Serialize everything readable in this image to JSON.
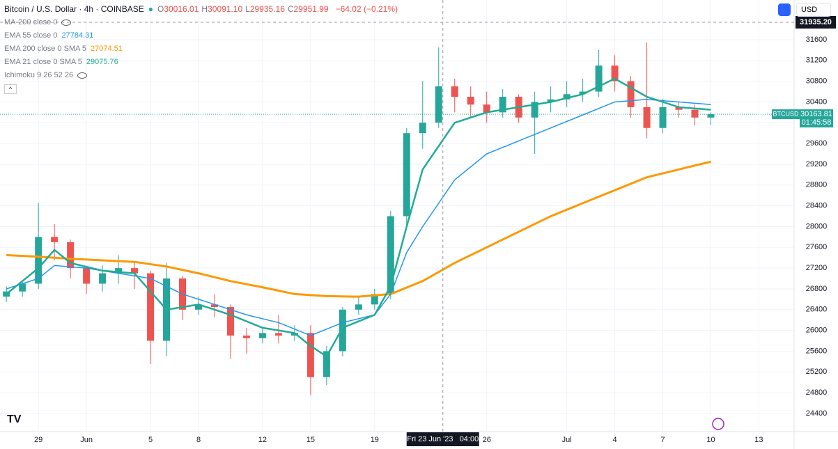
{
  "header": {
    "title": "Bitcoin / U.S. Dollar · 4h · COINBASE",
    "ohlc": [
      {
        "key": "O",
        "value": "30016.01"
      },
      {
        "key": "H",
        "value": "30091.10"
      },
      {
        "key": "L",
        "value": "29935.16"
      },
      {
        "key": "C",
        "value": "29951.99"
      }
    ],
    "change": "−64.02 (−0.21%)"
  },
  "indicators": [
    {
      "label": "MA-200 close 0"
    },
    {
      "label": "EMA 55 close 0",
      "value": "27784.31",
      "color": "#2196f3"
    },
    {
      "label": "EMA 200 close 0 SMA 5",
      "value": "27074.51",
      "color": "#ff9800"
    },
    {
      "label": "EMA 21 close 0 SMA 5",
      "value": "29075.76",
      "color": "#22ab94"
    },
    {
      "label": "Ichimoku 9 26 52 26"
    }
  ],
  "currency": "USD",
  "symbol": "BTCUSD",
  "countdown": "01:45:58",
  "chart_data": {
    "type": "candlestick",
    "up_color": "#26a69a",
    "down_color": "#ef5350",
    "x": [
      -2,
      -1,
      0,
      1,
      2,
      3,
      4,
      5,
      6,
      7,
      8,
      9,
      10,
      11,
      12,
      13,
      14,
      15,
      16,
      17,
      18,
      19,
      20,
      21,
      22,
      23,
      24,
      25,
      26,
      27,
      28,
      29,
      30,
      31,
      32,
      33,
      34,
      35,
      36,
      37,
      38,
      39,
      40,
      41,
      42
    ],
    "open": [
      26650,
      26750,
      26900,
      27800,
      27700,
      27200,
      26900,
      27100,
      27200,
      27100,
      25800,
      27000,
      26400,
      26500,
      26450,
      25900,
      25850,
      25950,
      25900,
      25950,
      25100,
      25600,
      26400,
      26500,
      26700,
      28200,
      29800,
      30000,
      30700,
      30500,
      30350,
      30200,
      30500,
      30100,
      30400,
      30450,
      30550,
      30600,
      31100,
      30800,
      30300,
      29900,
      30300,
      30250,
      30100
    ],
    "high": [
      26850,
      26950,
      28450,
      28050,
      27750,
      27200,
      27250,
      27450,
      27300,
      27150,
      27300,
      27050,
      26650,
      26700,
      26500,
      26050,
      26050,
      26300,
      26100,
      26100,
      25700,
      26450,
      26650,
      26800,
      28300,
      29900,
      30800,
      31450,
      30850,
      30700,
      30600,
      30650,
      30550,
      30600,
      30700,
      30800,
      30850,
      31400,
      31300,
      30900,
      31550,
      30450,
      30400,
      30350,
      30200
    ],
    "low": [
      26550,
      26650,
      26800,
      27350,
      27000,
      26700,
      26750,
      26900,
      26800,
      25350,
      25500,
      26200,
      26300,
      26250,
      25450,
      25550,
      25750,
      25750,
      25800,
      24750,
      24950,
      25500,
      26300,
      26400,
      26600,
      28000,
      29500,
      29900,
      30200,
      30100,
      30000,
      30100,
      30000,
      29400,
      30200,
      30300,
      30400,
      30500,
      30600,
      30100,
      29700,
      29800,
      30100,
      29950,
      29950
    ],
    "close": [
      26750,
      26900,
      27800,
      27700,
      27200,
      26900,
      27100,
      27200,
      27100,
      25800,
      27000,
      26400,
      26500,
      26450,
      25900,
      25850,
      25950,
      25900,
      25950,
      25100,
      25600,
      26400,
      26500,
      26700,
      28200,
      29800,
      30000,
      30700,
      30500,
      30350,
      30200,
      30500,
      30100,
      30400,
      30450,
      30550,
      30600,
      31100,
      30800,
      30300,
      29900,
      30300,
      30250,
      30100,
      30164
    ],
    "series": [
      {
        "color": "#ff9800",
        "width": 3,
        "x": [
          -2,
          0,
          2,
          4,
          6,
          8,
          10,
          12,
          14,
          16,
          18,
          20,
          22,
          24,
          26,
          28,
          30,
          32,
          34,
          36,
          38,
          40,
          42
        ],
        "values": [
          27450,
          27420,
          27380,
          27350,
          27320,
          27230,
          27100,
          26950,
          26830,
          26700,
          26660,
          26650,
          26700,
          26950,
          27300,
          27600,
          27900,
          28200,
          28450,
          28700,
          28950,
          29100,
          29250
        ]
      },
      {
        "color": "#2196f3",
        "width": 1.5,
        "x": [
          -2,
          0,
          1,
          3,
          5,
          7,
          9,
          11,
          13,
          15,
          17,
          19,
          21,
          22,
          23,
          24,
          26,
          28,
          30,
          32,
          34,
          36,
          38,
          40,
          42
        ],
        "values": [
          26800,
          27000,
          27250,
          27200,
          27100,
          27000,
          26700,
          26500,
          26300,
          26150,
          25900,
          26150,
          26300,
          26700,
          27500,
          28000,
          28900,
          29400,
          29650,
          29900,
          30150,
          30400,
          30450,
          30400,
          30350
        ]
      },
      {
        "color": "#22ab94",
        "width": 2.5,
        "x": [
          -2,
          0,
          1,
          2,
          4,
          6,
          8,
          10,
          12,
          14,
          16,
          17,
          18,
          19,
          21,
          22,
          23,
          24,
          26,
          28,
          30,
          32,
          34,
          36,
          38,
          40,
          42
        ],
        "values": [
          26700,
          27200,
          27550,
          27300,
          27150,
          27100,
          26400,
          26500,
          26300,
          26050,
          25950,
          25700,
          25500,
          26050,
          26300,
          26850,
          28000,
          29100,
          30000,
          30200,
          30300,
          30400,
          30550,
          30850,
          30500,
          30300,
          30250
        ]
      }
    ],
    "xlim": [
      -2.4,
      47.2
    ],
    "ylim": [
      24051,
      32364
    ],
    "yticks": [
      24400,
      24800,
      25200,
      25600,
      26000,
      26400,
      26800,
      27200,
      27600,
      28000,
      28400,
      28800,
      29200,
      29600,
      30000,
      30400,
      30800,
      31200,
      31600
    ],
    "xticks": [
      {
        "value": 0,
        "label": "29"
      },
      {
        "value": 3,
        "label": "Jun"
      },
      {
        "value": 7,
        "label": "5"
      },
      {
        "value": 10,
        "label": "8"
      },
      {
        "value": 14,
        "label": "12"
      },
      {
        "value": 17,
        "label": "15"
      },
      {
        "value": 21,
        "label": "19"
      },
      {
        "value": 28,
        "label": "26"
      },
      {
        "value": 33,
        "label": "Jul"
      },
      {
        "value": 36,
        "label": "4"
      },
      {
        "value": 39,
        "label": "7"
      },
      {
        "value": 42,
        "label": "10"
      },
      {
        "value": 45,
        "label": "13"
      }
    ],
    "last_price": 30163.81,
    "crosshair_x": {
      "value": 25.26,
      "label": "Fri 23 Jun '23   04:00"
    },
    "crosshair_y": {
      "value": 31935.2,
      "label": "31935.20"
    }
  }
}
